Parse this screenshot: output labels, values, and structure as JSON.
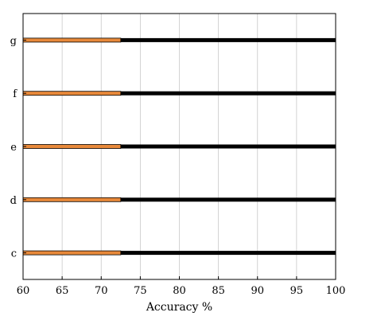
{
  "chart_data": {
    "type": "bar",
    "orientation": "horizontal",
    "categories": [
      "g",
      "f",
      "e",
      "d",
      "c"
    ],
    "series": [
      {
        "values": [
          72.5,
          72.5,
          72.5,
          72.5,
          72.5
        ],
        "color": "#e8893a"
      },
      {
        "values": [
          100,
          100,
          100,
          100,
          100
        ],
        "color": "#000000"
      }
    ],
    "xlabel": "Accuracy %",
    "ylabel": "",
    "xlim": [
      60,
      100
    ],
    "xticks": [
      60,
      65,
      70,
      75,
      80,
      85,
      90,
      95,
      100
    ],
    "grid": "vertical"
  }
}
